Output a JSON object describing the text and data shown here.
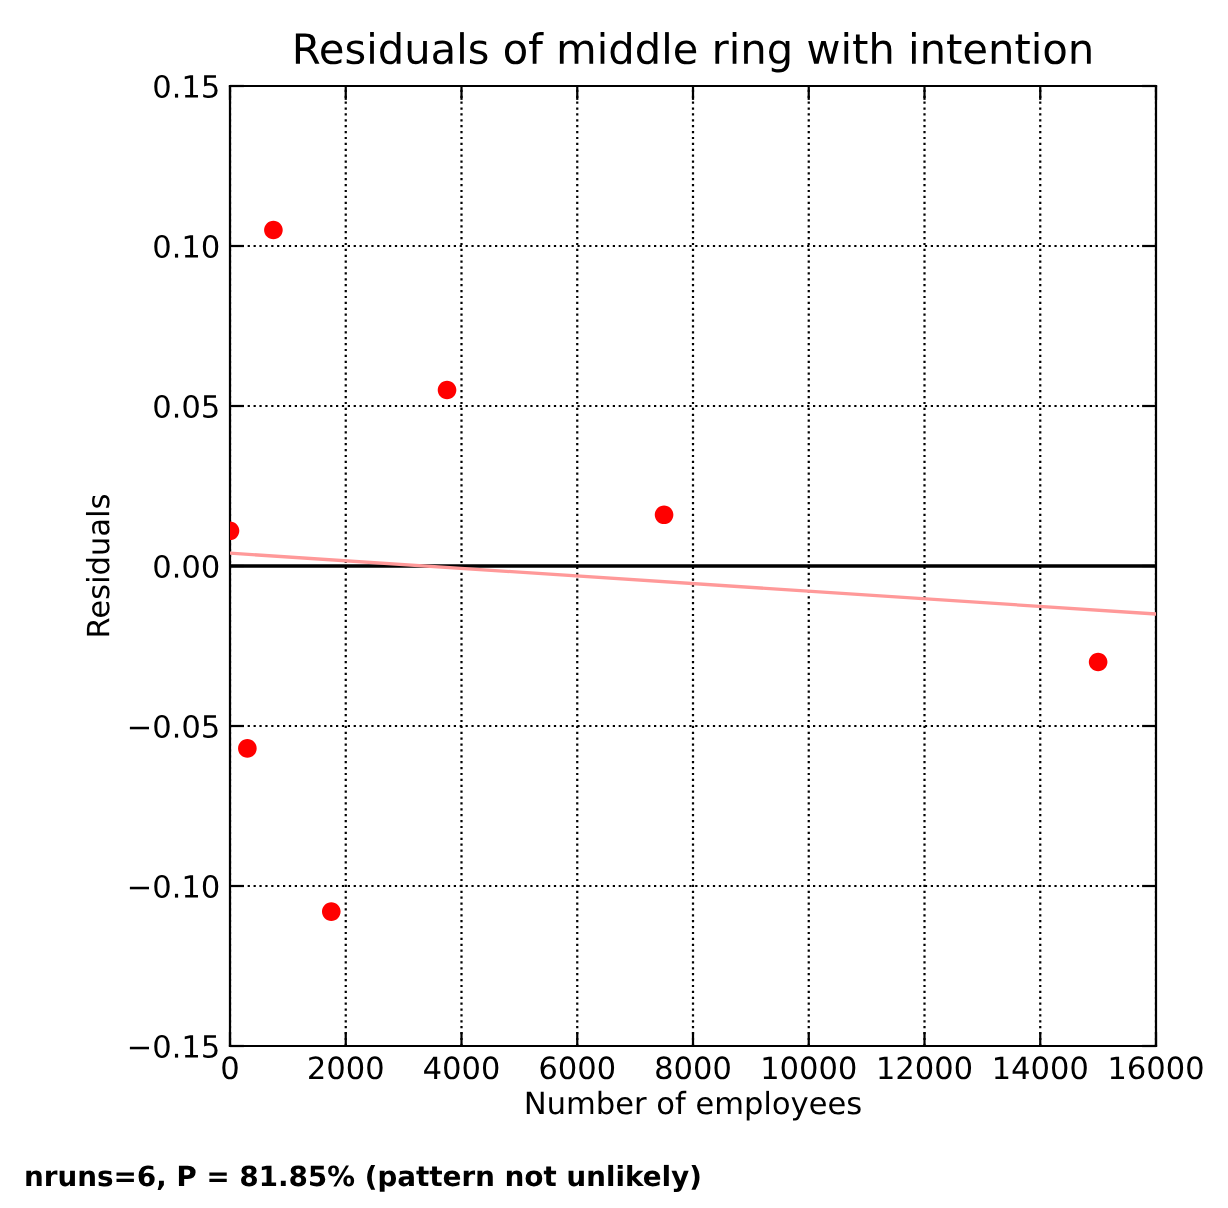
{
  "chart_data": {
    "type": "scatter",
    "title": "Residuals of middle ring with intention",
    "xlabel": "Number of employees",
    "ylabel": "Residuals",
    "series": [
      {
        "marker": "circle",
        "color": "#ff0000",
        "x": [
          0,
          300,
          750,
          1750,
          3750,
          7500,
          15000
        ],
        "values": [
          0.011,
          -0.057,
          0.105,
          -0.108,
          0.055,
          0.016,
          -0.03
        ]
      },
      {
        "type": "line",
        "marker": "none",
        "color": "#ff9999",
        "x": [
          0,
          16000
        ],
        "values": [
          0.004,
          -0.015
        ]
      }
    ],
    "ref_lines": [
      {
        "axis": "y",
        "value": 0,
        "color": "#000000"
      }
    ],
    "xlim": [
      0,
      16000
    ],
    "xticks": [
      0,
      2000,
      4000,
      6000,
      8000,
      10000,
      12000,
      14000,
      16000
    ],
    "ylim": [
      -0.15,
      0.15
    ],
    "yticks": [
      {
        "value": -0.15,
        "label": "−0.15"
      },
      {
        "value": -0.1,
        "label": "−0.10"
      },
      {
        "value": -0.05,
        "label": "−0.05"
      },
      {
        "value": 0,
        "label": "0.00"
      },
      {
        "value": 0.05,
        "label": "0.05"
      },
      {
        "value": 0.1,
        "label": "0.10"
      },
      {
        "value": 0.15,
        "label": "0.15"
      }
    ],
    "grid": true,
    "annotations": [
      "nruns=6, P = 81.85% (pattern not unlikely)"
    ]
  }
}
